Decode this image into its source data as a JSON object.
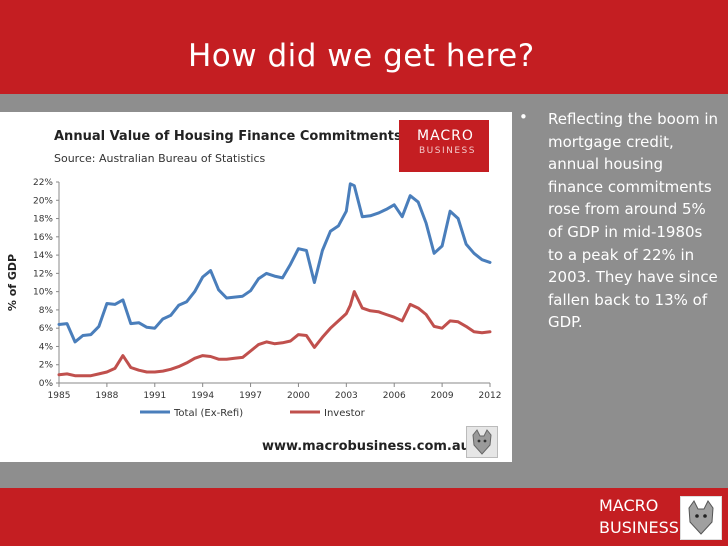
{
  "slide": {
    "title": "How did we get here?",
    "footer_logo_line1": "MACRO",
    "footer_logo_line2": "BUSINESS",
    "bullet_symbol": "•",
    "bullet_text": "Reflecting the boom in mortgage credit, annual housing finance commitments rose from around 5% of GDP in mid-1980s to a peak of 22% in 2003. They have since fallen back to 13% of GDP."
  },
  "chart_logo": {
    "line1": "MACRO",
    "line2": "BUSINESS",
    "line3": ""
  },
  "chart_url": "www.macrobusiness.com.au",
  "colors": {
    "header": "#c41e22",
    "total": "#4a7ebb",
    "investor": "#c0504d"
  },
  "chart_data": {
    "type": "line",
    "title": "Annual Value of Housing Finance Commitments",
    "subtitle": "Source: Australian Bureau of Statistics",
    "xlabel": "",
    "ylabel": "% of GDP",
    "xlim": [
      1985,
      2012
    ],
    "ylim": [
      0,
      22
    ],
    "x_ticks": [
      "1985",
      "1988",
      "1991",
      "1994",
      "1997",
      "2000",
      "2003",
      "2006",
      "2009",
      "2012"
    ],
    "y_ticks": [
      "0%",
      "2%",
      "4%",
      "6%",
      "8%",
      "10%",
      "12%",
      "14%",
      "16%",
      "18%",
      "20%",
      "22%"
    ],
    "grid": false,
    "legend": "bottom",
    "series": [
      {
        "name": "Total (Ex-Refi)",
        "color": "#4a7ebb",
        "x": [
          1985,
          1985.5,
          1986,
          1986.5,
          1987,
          1987.5,
          1988,
          1988.5,
          1989,
          1989.5,
          1990,
          1990.5,
          1991,
          1991.5,
          1992,
          1992.5,
          1993,
          1993.5,
          1994,
          1994.5,
          1995,
          1995.5,
          1996,
          1996.5,
          1997,
          1997.5,
          1998,
          1998.5,
          1999,
          1999.5,
          2000,
          2000.5,
          2001,
          2001.5,
          2002,
          2002.5,
          2003,
          2003.25,
          2003.5,
          2004,
          2004.5,
          2005,
          2005.5,
          2006,
          2006.5,
          2007,
          2007.5,
          2008,
          2008.5,
          2009,
          2009.5,
          2010,
          2010.5,
          2011,
          2011.5,
          2012
        ],
        "y": [
          6.4,
          6.5,
          4.5,
          5.2,
          5.3,
          6.2,
          8.7,
          8.6,
          9.1,
          6.5,
          6.6,
          6.1,
          6.0,
          7.0,
          7.4,
          8.5,
          8.9,
          10.0,
          11.6,
          12.3,
          10.2,
          9.3,
          9.4,
          9.5,
          10.1,
          11.4,
          12.0,
          11.7,
          11.5,
          13.0,
          14.7,
          14.5,
          11.0,
          14.5,
          16.6,
          17.2,
          18.8,
          21.8,
          21.6,
          18.2,
          18.3,
          18.6,
          19.0,
          19.5,
          18.2,
          20.5,
          19.8,
          17.5,
          14.2,
          15.0,
          18.8,
          18.0,
          15.2,
          14.2,
          13.5,
          13.2
        ]
      },
      {
        "name": "Investor",
        "color": "#c0504d",
        "x": [
          1985,
          1985.5,
          1986,
          1986.5,
          1987,
          1987.5,
          1988,
          1988.5,
          1989,
          1989.5,
          1990,
          1990.5,
          1991,
          1991.5,
          1992,
          1992.5,
          1993,
          1993.5,
          1994,
          1994.5,
          1995,
          1995.5,
          1996,
          1996.5,
          1997,
          1997.5,
          1998,
          1998.5,
          1999,
          1999.5,
          2000,
          2000.5,
          2001,
          2001.5,
          2002,
          2002.5,
          2003,
          2003.25,
          2003.5,
          2004,
          2004.5,
          2005,
          2005.5,
          2006,
          2006.5,
          2007,
          2007.5,
          2008,
          2008.5,
          2009,
          2009.5,
          2010,
          2010.5,
          2011,
          2011.5,
          2012
        ],
        "y": [
          0.9,
          1.0,
          0.8,
          0.8,
          0.8,
          1.0,
          1.2,
          1.6,
          3.0,
          1.7,
          1.4,
          1.2,
          1.2,
          1.3,
          1.5,
          1.8,
          2.2,
          2.7,
          3.0,
          2.9,
          2.6,
          2.6,
          2.7,
          2.8,
          3.5,
          4.2,
          4.5,
          4.3,
          4.4,
          4.6,
          5.3,
          5.2,
          3.9,
          5.0,
          6.0,
          6.8,
          7.6,
          8.5,
          10.0,
          8.2,
          7.9,
          7.8,
          7.5,
          7.2,
          6.8,
          8.6,
          8.2,
          7.5,
          6.2,
          6.0,
          6.8,
          6.7,
          6.2,
          5.6,
          5.5,
          5.6
        ]
      }
    ]
  }
}
